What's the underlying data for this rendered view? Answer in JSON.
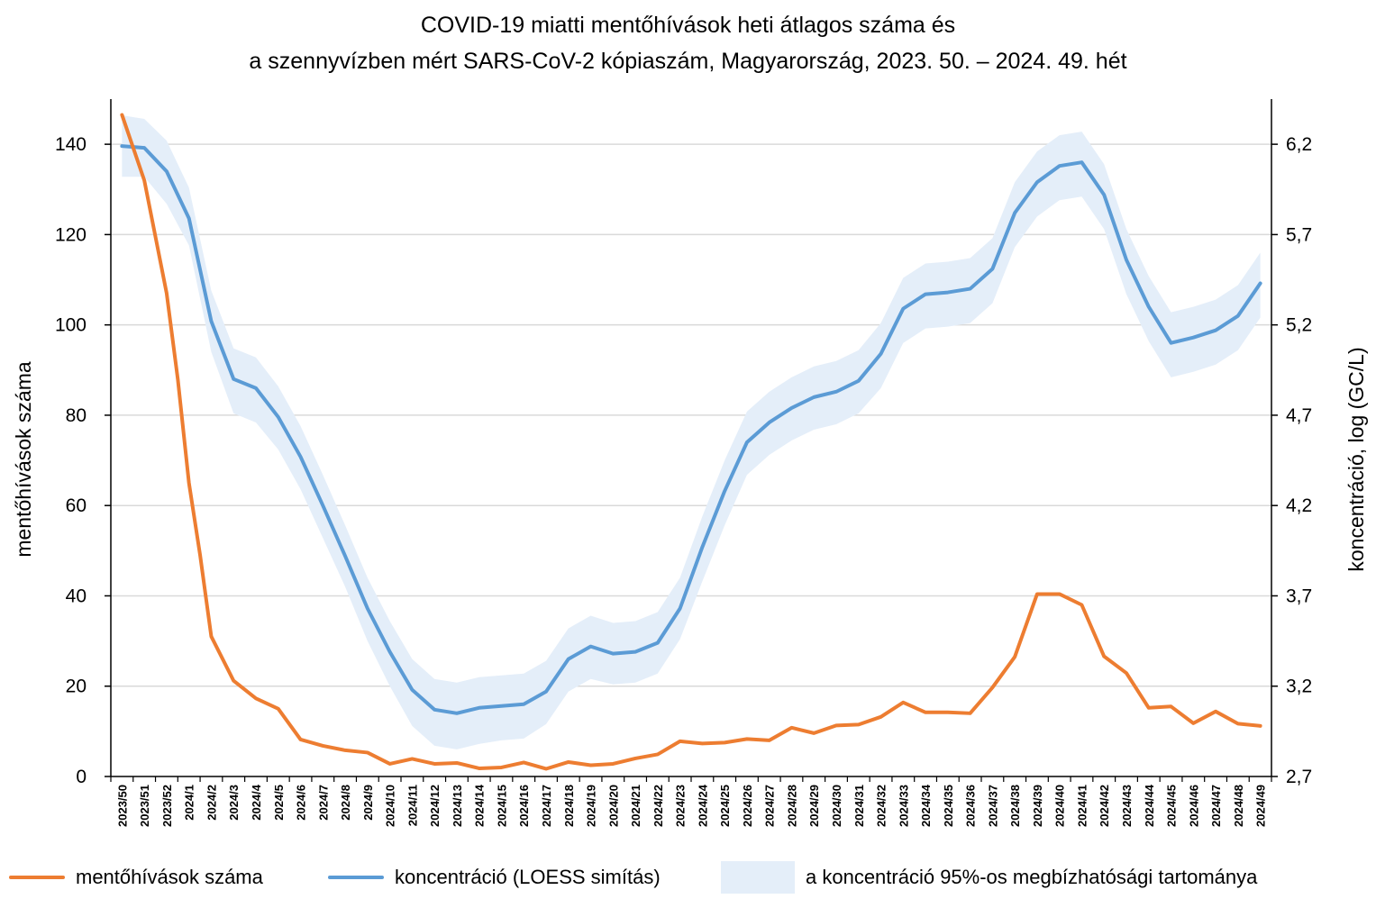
{
  "chart_data": {
    "type": "line",
    "title": [
      "COVID-19 miatti mentőhívások heti átlagos száma és",
      "a szennyvízben mért SARS-CoV-2 kópiaszám, Magyarország, 2023. 50. – 2024. 49. hét"
    ],
    "ylabel_left": "mentőhívások száma",
    "ylabel_right": "koncentráció, log (GC/L)",
    "ylim_left": [
      0,
      150
    ],
    "ylim_right": [
      2.7,
      6.45
    ],
    "yticks_left": [
      0,
      20,
      40,
      60,
      80,
      100,
      120,
      140
    ],
    "yticks_right": [
      "2,7",
      "3,2",
      "3,7",
      "4,2",
      "4,7",
      "5,2",
      "5,7",
      "6,2"
    ],
    "yticks_right_values": [
      2.7,
      3.2,
      3.7,
      4.2,
      4.7,
      5.2,
      5.7,
      6.2
    ],
    "categories": [
      "2023/50",
      "2023/51",
      "2023/52",
      "2024/1",
      "2024/2",
      "2024/3",
      "2024/4",
      "2024/5",
      "2024/6",
      "2024/7",
      "2024/8",
      "2024/9",
      "2024/10",
      "2024/11",
      "2024/12",
      "2024/13",
      "2024/14",
      "2024/15",
      "2024/16",
      "2024/17",
      "2024/18",
      "2024/19",
      "2024/20",
      "2024/21",
      "2024/22",
      "2024/23",
      "2024/24",
      "2024/25",
      "2024/26",
      "2024/27",
      "2024/28",
      "2024/29",
      "2024/30",
      "2024/31",
      "2024/32",
      "2024/33",
      "2024/34",
      "2024/35",
      "2024/36",
      "2024/37",
      "2024/38",
      "2024/39",
      "2024/40",
      "2024/41",
      "2024/42",
      "2024/43",
      "2024/44",
      "2024/45",
      "2024/46",
      "2024/47",
      "2024/48",
      "2024/49"
    ],
    "series": [
      {
        "name": "mentőhívások száma",
        "axis": "left",
        "color": "#ED7D31",
        "x": [
          0,
          1,
          2,
          2.5,
          3,
          3.5,
          4,
          5,
          6,
          7,
          8,
          9,
          10,
          11,
          12,
          13,
          14,
          15,
          16,
          17,
          18,
          19,
          20,
          21,
          22,
          23,
          24,
          25,
          26,
          27,
          28,
          29,
          30,
          31,
          32,
          33,
          34,
          35,
          36,
          37,
          38,
          39,
          40,
          41,
          42,
          43,
          44,
          45,
          46,
          47,
          48,
          49,
          50,
          51
        ],
        "values": [
          146.5,
          132,
          107,
          88,
          65,
          49,
          31,
          21.2,
          17.3,
          15,
          8.2,
          6.8,
          5.8,
          5.3,
          2.8,
          3.9,
          2.8,
          3,
          1.8,
          2,
          3.1,
          1.7,
          3.2,
          2.5,
          2.8,
          4,
          4.9,
          7.8,
          7.3,
          7.5,
          8.3,
          8,
          10.8,
          9.6,
          11.3,
          11.5,
          13.2,
          16.4,
          14.2,
          14.2,
          14,
          19.7,
          26.5,
          40.4,
          40.4,
          38,
          26.6,
          22.9,
          15.2,
          15.5,
          11.8,
          14.4,
          11.7,
          11.2
        ]
      },
      {
        "name": "koncentráció (LOESS simítás)",
        "axis": "right",
        "color": "#5B9BD5",
        "values": [
          6.19,
          6.18,
          6.05,
          5.79,
          5.22,
          4.9,
          4.85,
          4.69,
          4.47,
          4.2,
          3.92,
          3.63,
          3.39,
          3.18,
          3.07,
          3.05,
          3.08,
          3.09,
          3.1,
          3.17,
          3.35,
          3.42,
          3.38,
          3.39,
          3.44,
          3.63,
          3.97,
          4.28,
          4.55,
          4.66,
          4.74,
          4.8,
          4.83,
          4.89,
          5.04,
          5.29,
          5.37,
          5.38,
          5.4,
          5.51,
          5.82,
          5.99,
          6.08,
          6.1,
          5.92,
          5.56,
          5.3,
          5.1,
          5.13,
          5.17,
          5.25,
          5.43
        ]
      },
      {
        "name": "a koncentráció 95%-os megbízhatósági tartománya",
        "axis": "right",
        "color": "#E4EEF9",
        "lower": [
          6.02,
          6.02,
          5.87,
          5.64,
          5.05,
          4.71,
          4.66,
          4.51,
          4.29,
          4.02,
          3.75,
          3.45,
          3.2,
          2.98,
          2.87,
          2.85,
          2.88,
          2.9,
          2.91,
          2.99,
          3.17,
          3.24,
          3.21,
          3.22,
          3.27,
          3.46,
          3.78,
          4.09,
          4.37,
          4.48,
          4.56,
          4.62,
          4.65,
          4.71,
          4.85,
          5.1,
          5.18,
          5.19,
          5.21,
          5.32,
          5.63,
          5.8,
          5.89,
          5.91,
          5.73,
          5.37,
          5.11,
          4.91,
          4.94,
          4.98,
          5.06,
          5.24
        ],
        "upper": [
          6.36,
          6.34,
          6.22,
          5.96,
          5.39,
          5.07,
          5.02,
          4.86,
          4.64,
          4.37,
          4.09,
          3.8,
          3.56,
          3.35,
          3.24,
          3.22,
          3.25,
          3.26,
          3.27,
          3.34,
          3.52,
          3.59,
          3.55,
          3.56,
          3.61,
          3.8,
          4.14,
          4.45,
          4.72,
          4.83,
          4.91,
          4.97,
          5,
          5.06,
          5.21,
          5.46,
          5.54,
          5.55,
          5.57,
          5.68,
          5.99,
          6.16,
          6.25,
          6.27,
          6.09,
          5.73,
          5.47,
          5.27,
          5.3,
          5.34,
          5.42,
          5.6
        ]
      }
    ],
    "legend_position": "bottom",
    "grid": true
  },
  "legend": {
    "items": [
      {
        "label": "mentőhívások száma",
        "color": "#ED7D31"
      },
      {
        "label": "koncentráció (LOESS simítás)",
        "color": "#5B9BD5"
      },
      {
        "label": "a koncentráció 95%-os megbízhatósági tartománya",
        "color": "#E4EEF9"
      }
    ]
  }
}
